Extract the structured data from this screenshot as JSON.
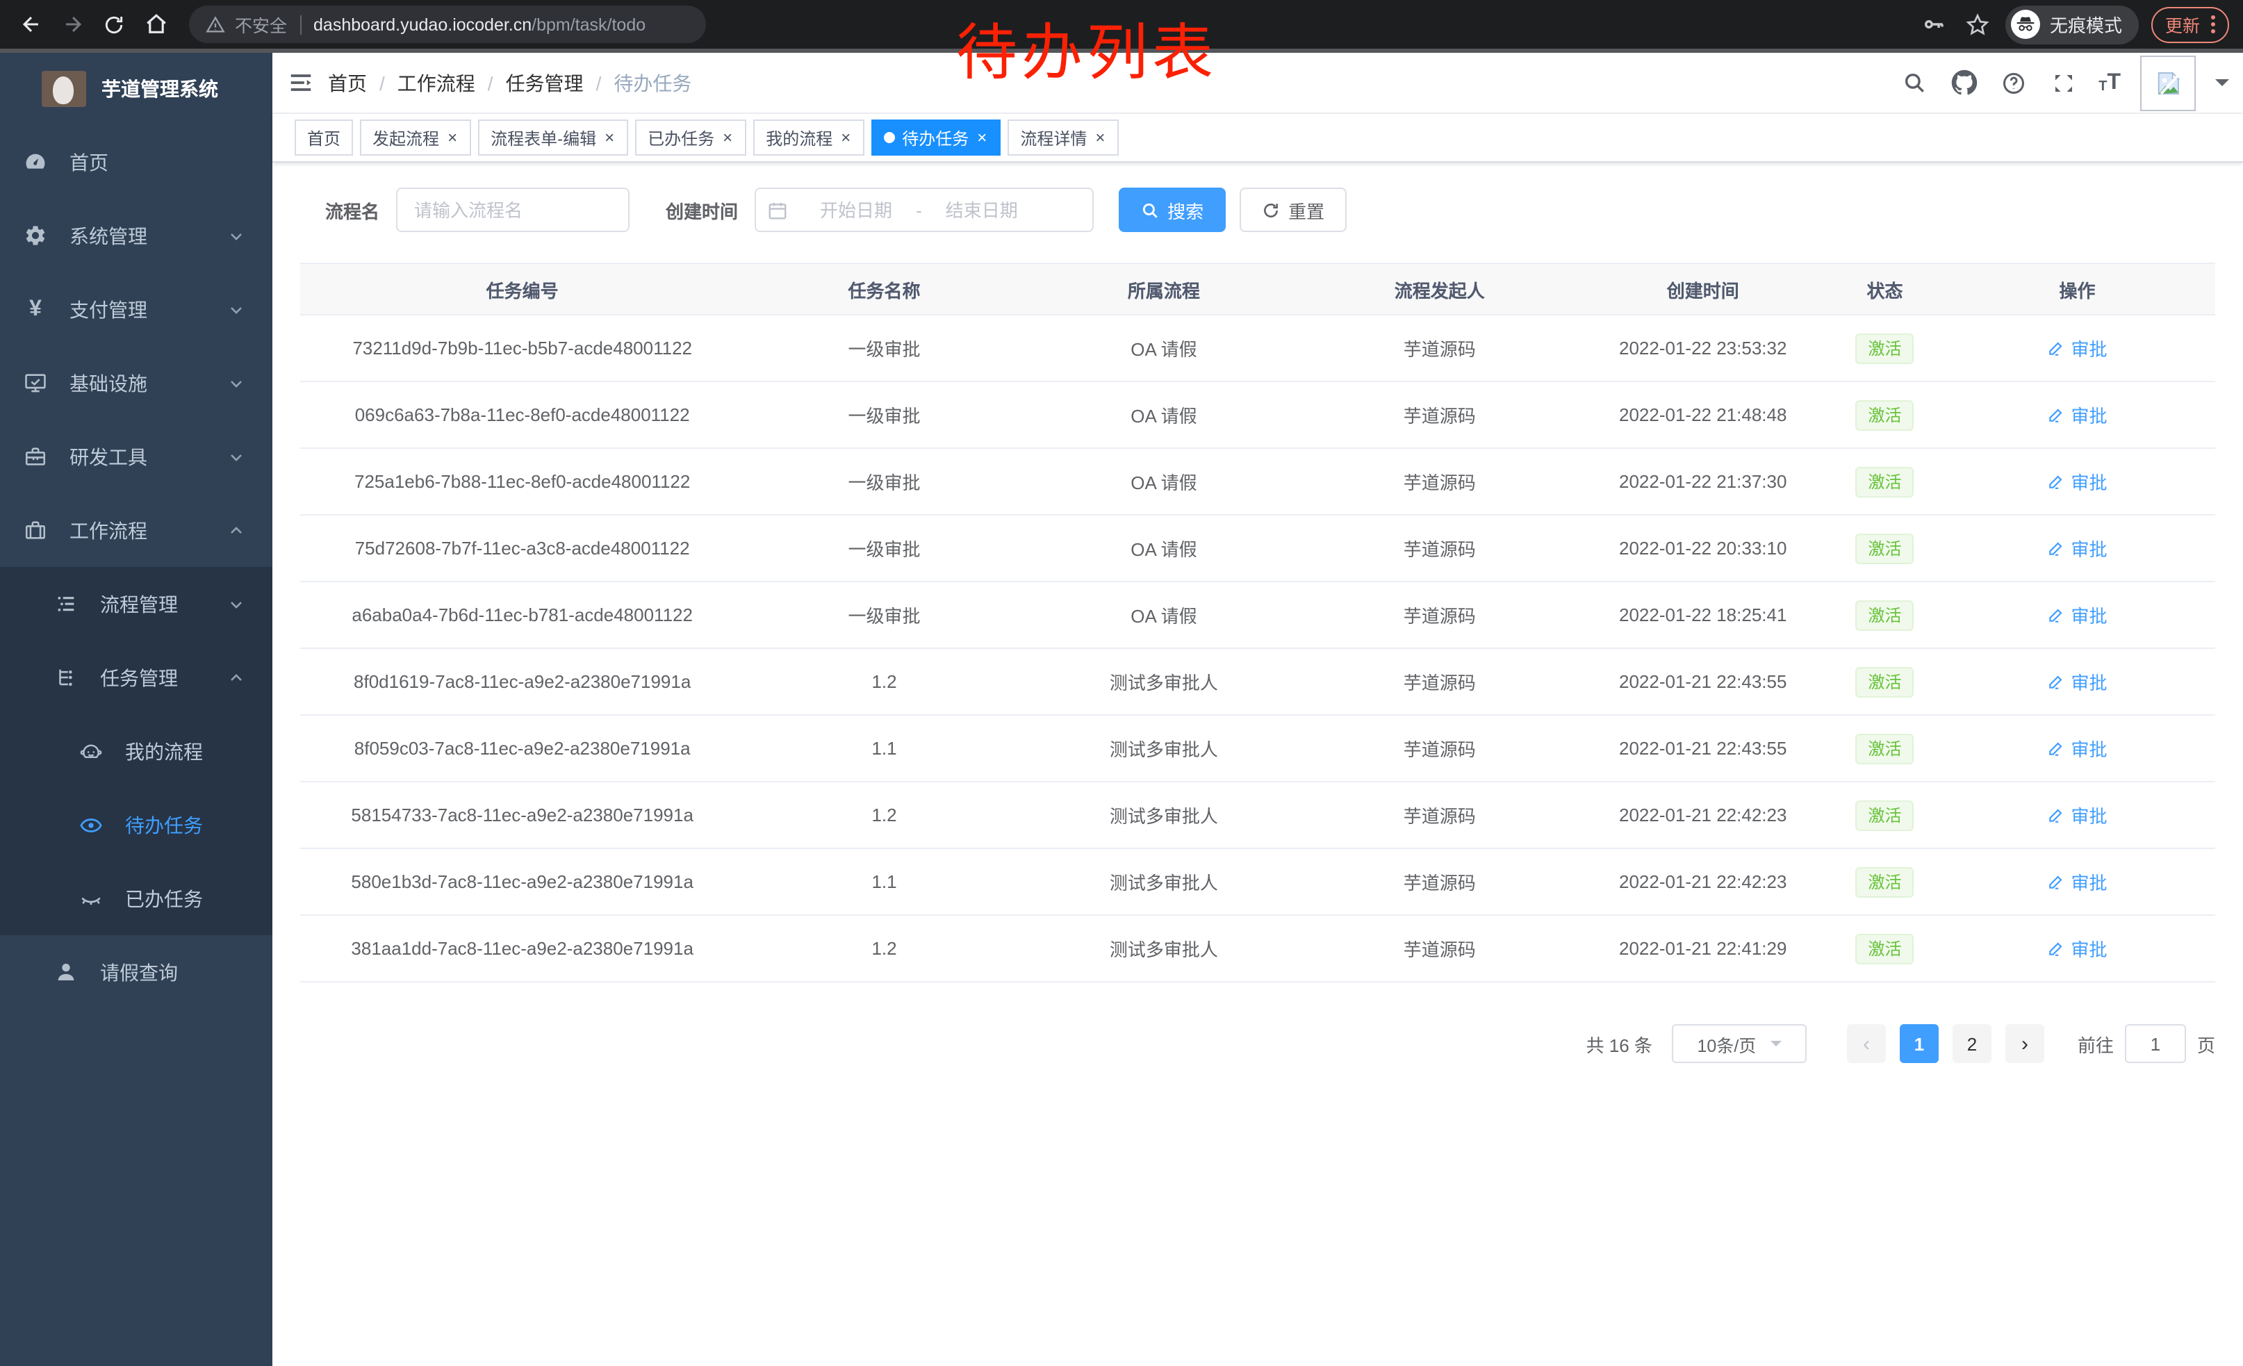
{
  "browser": {
    "security_label": "不安全",
    "url_host": "dashboard.yudao.iocoder.cn",
    "url_path": "/bpm/task/todo",
    "incognito_label": "无痕模式",
    "update_label": "更新"
  },
  "annotation": {
    "text": "待办列表",
    "color": "#fa2104"
  },
  "header": {
    "breadcrumb": [
      {
        "label": "首页",
        "current": false
      },
      {
        "label": "工作流程",
        "current": false
      },
      {
        "label": "任务管理",
        "current": false
      },
      {
        "label": "待办任务",
        "current": true
      }
    ],
    "separator": "/"
  },
  "tabs": [
    {
      "label": "首页",
      "closable": false,
      "active": false
    },
    {
      "label": "发起流程",
      "closable": true,
      "active": false
    },
    {
      "label": "流程表单-编辑",
      "closable": true,
      "active": false
    },
    {
      "label": "已办任务",
      "closable": true,
      "active": false
    },
    {
      "label": "我的流程",
      "closable": true,
      "active": false
    },
    {
      "label": "待办任务",
      "closable": true,
      "active": true
    },
    {
      "label": "流程详情",
      "closable": true,
      "active": false
    }
  ],
  "sidebar": {
    "title": "芋道管理系统",
    "menu": [
      {
        "label": "首页",
        "level": 1,
        "icon": "dashboard-icon",
        "chevron": null,
        "dark": false,
        "active": false
      },
      {
        "label": "系统管理",
        "level": 1,
        "icon": "gear-icon",
        "chevron": "down",
        "dark": false,
        "active": false
      },
      {
        "label": "支付管理",
        "level": 1,
        "icon": "yen-icon",
        "chevron": "down",
        "dark": false,
        "active": false
      },
      {
        "label": "基础设施",
        "level": 1,
        "icon": "monitor-icon",
        "chevron": "down",
        "dark": false,
        "active": false
      },
      {
        "label": "研发工具",
        "level": 1,
        "icon": "toolbox-icon",
        "chevron": "down",
        "dark": false,
        "active": false
      },
      {
        "label": "工作流程",
        "level": 1,
        "icon": "briefcase-icon",
        "chevron": "up",
        "dark": false,
        "active": false
      },
      {
        "label": "流程管理",
        "level": 2,
        "icon": "list-tree-icon",
        "chevron": "down",
        "dark": true,
        "active": false
      },
      {
        "label": "任务管理",
        "level": 2,
        "icon": "org-tree-icon",
        "chevron": "up",
        "dark": true,
        "active": false
      },
      {
        "label": "我的流程",
        "level": 3,
        "icon": "robot-icon",
        "chevron": null,
        "dark": true,
        "active": false
      },
      {
        "label": "待办任务",
        "level": 3,
        "icon": "eye-open-icon",
        "chevron": null,
        "dark": true,
        "active": true
      },
      {
        "label": "已办任务",
        "level": 3,
        "icon": "eye-closed-icon",
        "chevron": null,
        "dark": true,
        "active": false
      },
      {
        "label": "请假查询",
        "level": 2,
        "icon": "user-icon",
        "chevron": null,
        "dark": false,
        "active": false
      }
    ]
  },
  "filters": {
    "name_label": "流程名",
    "name_placeholder": "请输入流程名",
    "time_label": "创建时间",
    "start_placeholder": "开始日期",
    "range_separator": "-",
    "end_placeholder": "结束日期",
    "search_label": "搜索",
    "reset_label": "重置"
  },
  "table": {
    "columns": [
      "任务编号",
      "任务名称",
      "所属流程",
      "流程发起人",
      "创建时间",
      "状态",
      "操作"
    ],
    "rows": [
      {
        "id": "73211d9d-7b9b-11ec-b5b7-acde48001122",
        "name": "一级审批",
        "process": "OA 请假",
        "initiator": "芋道源码",
        "created": "2022-01-22 23:53:32",
        "status": "激活",
        "action": "审批"
      },
      {
        "id": "069c6a63-7b8a-11ec-8ef0-acde48001122",
        "name": "一级审批",
        "process": "OA 请假",
        "initiator": "芋道源码",
        "created": "2022-01-22 21:48:48",
        "status": "激活",
        "action": "审批"
      },
      {
        "id": "725a1eb6-7b88-11ec-8ef0-acde48001122",
        "name": "一级审批",
        "process": "OA 请假",
        "initiator": "芋道源码",
        "created": "2022-01-22 21:37:30",
        "status": "激活",
        "action": "审批"
      },
      {
        "id": "75d72608-7b7f-11ec-a3c8-acde48001122",
        "name": "一级审批",
        "process": "OA 请假",
        "initiator": "芋道源码",
        "created": "2022-01-22 20:33:10",
        "status": "激活",
        "action": "审批"
      },
      {
        "id": "a6aba0a4-7b6d-11ec-b781-acde48001122",
        "name": "一级审批",
        "process": "OA 请假",
        "initiator": "芋道源码",
        "created": "2022-01-22 18:25:41",
        "status": "激活",
        "action": "审批"
      },
      {
        "id": "8f0d1619-7ac8-11ec-a9e2-a2380e71991a",
        "name": "1.2",
        "process": "测试多审批人",
        "initiator": "芋道源码",
        "created": "2022-01-21 22:43:55",
        "status": "激活",
        "action": "审批"
      },
      {
        "id": "8f059c03-7ac8-11ec-a9e2-a2380e71991a",
        "name": "1.1",
        "process": "测试多审批人",
        "initiator": "芋道源码",
        "created": "2022-01-21 22:43:55",
        "status": "激活",
        "action": "审批"
      },
      {
        "id": "58154733-7ac8-11ec-a9e2-a2380e71991a",
        "name": "1.2",
        "process": "测试多审批人",
        "initiator": "芋道源码",
        "created": "2022-01-21 22:42:23",
        "status": "激活",
        "action": "审批"
      },
      {
        "id": "580e1b3d-7ac8-11ec-a9e2-a2380e71991a",
        "name": "1.1",
        "process": "测试多审批人",
        "initiator": "芋道源码",
        "created": "2022-01-21 22:42:23",
        "status": "激活",
        "action": "审批"
      },
      {
        "id": "381aa1dd-7ac8-11ec-a9e2-a2380e71991a",
        "name": "1.2",
        "process": "测试多审批人",
        "initiator": "芋道源码",
        "created": "2022-01-21 22:41:29",
        "status": "激活",
        "action": "审批"
      }
    ]
  },
  "pagination": {
    "total_label": "共 16 条",
    "page_size": "10条/页",
    "pages": [
      "1",
      "2"
    ],
    "active_page": "1",
    "goto_label": "前往",
    "goto_value": "1",
    "page_unit": "页"
  },
  "colors": {
    "accent": "#409eff",
    "tab_active": "#1890ff",
    "status_bg": "#f0f9eb",
    "status_border": "#e1f3d8",
    "status_text": "#67c23a",
    "sidebar_bg": "#304156",
    "sidebar_submenu_bg": "#263445",
    "annotation_red": "#fa2104"
  }
}
